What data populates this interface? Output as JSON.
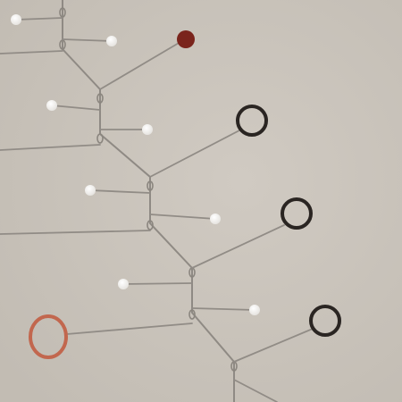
{
  "photo": {
    "subject": "",
    "colors": {
      "wall": "#c9c3bb",
      "wire": "#8f8a84",
      "bead": "#f4f3f1",
      "red_dot": "#7a241c",
      "dark_ring": "#2a2522",
      "copper_ring": "#c2674e"
    }
  }
}
